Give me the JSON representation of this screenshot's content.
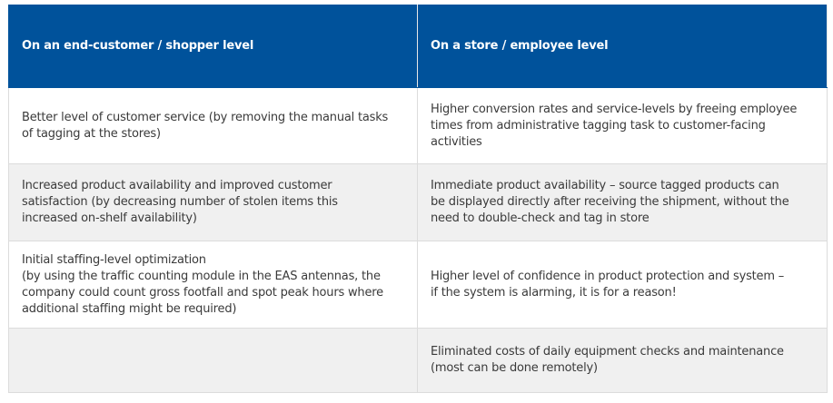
{
  "header": [
    "On an end-customer / shopper level",
    "On a store / employee level"
  ],
  "rows": [
    {
      "left": [
        "Better level of customer service (by removing the manual tasks",
        "of tagging at the stores)"
      ],
      "right": [
        "Higher conversion rates and service-levels by freeing employee",
        "times from administrative tagging task to customer-facing",
        "activities"
      ]
    },
    {
      "left": [
        "Increased product availability and improved customer",
        "satisfaction (by decreasing number of stolen items this",
        "increased on-shelf availability)"
      ],
      "right": [
        "Immediate product availability – source tagged products can",
        "be displayed directly after receiving the shipment, without the",
        "need to double-check and tag in store"
      ]
    },
    {
      "left": [
        "Initial staffing-level optimization",
        "(by using the traffic counting module in the EAS antennas, the",
        "company could count gross footfall and spot peak hours where",
        "additional staffing might be required)"
      ],
      "right": [
        "Higher level of confidence in product protection and system –",
        "if the system is alarming, it is for a reason!"
      ]
    },
    {
      "left": [],
      "right": [
        "Eliminated costs of daily equipment checks and maintenance",
        "(most can be done remotely)"
      ]
    }
  ],
  "colors": {
    "header_bg": "#00529b",
    "row_alt_bg": "#f0f0f0"
  }
}
